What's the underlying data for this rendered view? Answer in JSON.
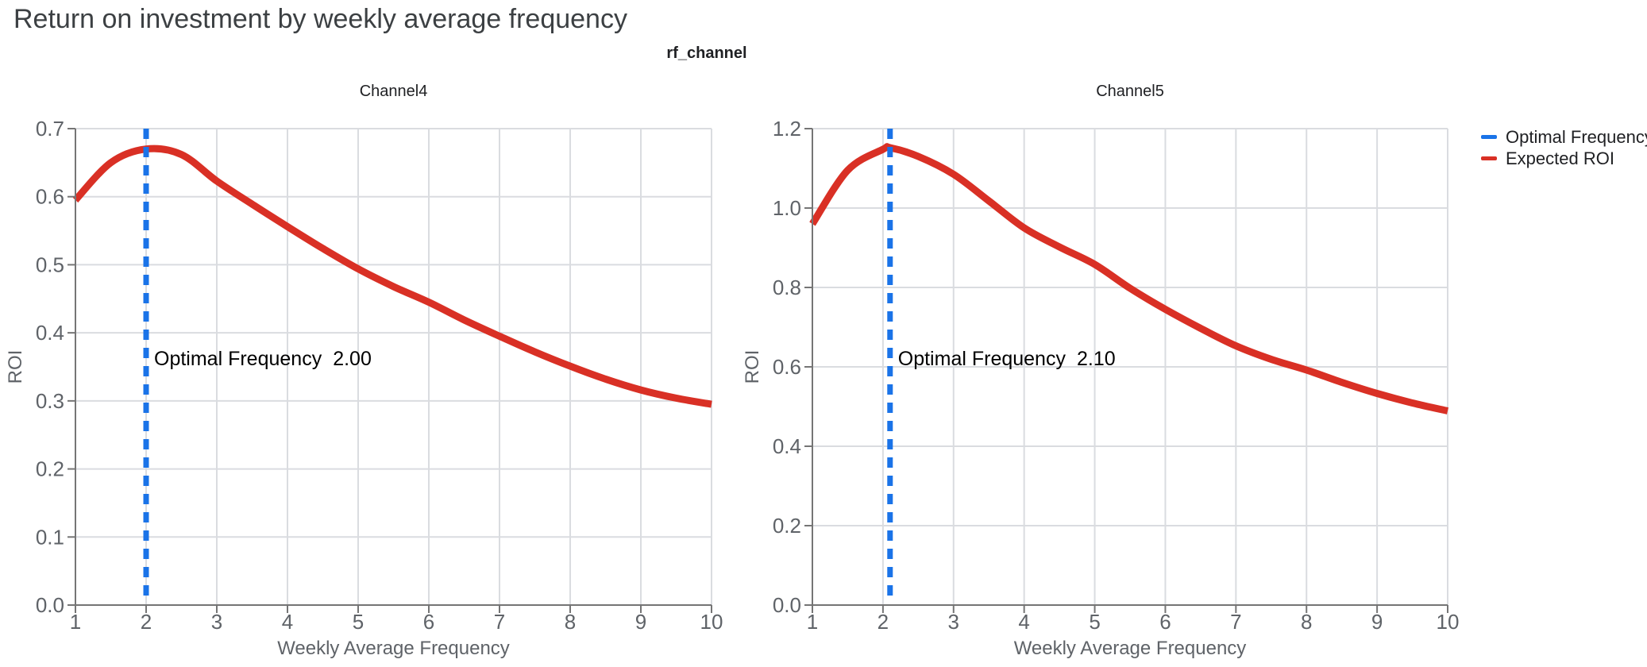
{
  "page": {
    "title": "Return on investment by weekly average frequency"
  },
  "header": {
    "facet_title": "rf_channel"
  },
  "legend": {
    "position": "top-right",
    "items": [
      {
        "label": "Optimal Frequency",
        "color": "#1A73E8",
        "style": "line"
      },
      {
        "label": "Expected ROI",
        "color": "#D93025",
        "style": "line"
      }
    ]
  },
  "colors": {
    "optimal_frequency_line": "#1A73E8",
    "expected_roi_line": "#D93025",
    "grid": "#DADCE0",
    "axis": "#757575",
    "tick_label": "#5F6368",
    "axis_title": "#5F6368",
    "chart_title": "#202124",
    "annotation": "#000000",
    "page_title": "#3C4043"
  },
  "chart_data": [
    {
      "type": "line",
      "title": "Channel4",
      "xlabel": "Weekly Average Frequency",
      "ylabel": "ROI",
      "xlim": [
        1,
        10
      ],
      "ylim": [
        0.0,
        0.7
      ],
      "xticks": [
        "1",
        "2",
        "3",
        "4",
        "5",
        "6",
        "7",
        "8",
        "9",
        "10"
      ],
      "yticks": [
        "0.0",
        "0.1",
        "0.2",
        "0.3",
        "0.4",
        "0.5",
        "0.6",
        "0.7"
      ],
      "grid": true,
      "optimal_frequency": {
        "label": "Optimal Frequency",
        "value": "2.00",
        "x": 2.0
      },
      "series": [
        {
          "name": "Expected ROI",
          "color": "#D93025",
          "x": [
            1,
            1.5,
            2,
            2.5,
            3,
            3.5,
            4,
            4.5,
            5,
            5.5,
            6,
            6.5,
            7,
            7.5,
            8,
            8.5,
            9,
            9.5,
            10
          ],
          "y": [
            0.595,
            0.65,
            0.67,
            0.662,
            0.623,
            0.589,
            0.556,
            0.524,
            0.494,
            0.468,
            0.445,
            0.419,
            0.395,
            0.372,
            0.351,
            0.332,
            0.316,
            0.304,
            0.295
          ]
        }
      ]
    },
    {
      "type": "line",
      "title": "Channel5",
      "xlabel": "Weekly Average Frequency",
      "ylabel": "ROI",
      "xlim": [
        1,
        10
      ],
      "ylim": [
        0.0,
        1.2
      ],
      "xticks": [
        "1",
        "2",
        "3",
        "4",
        "5",
        "6",
        "7",
        "8",
        "9",
        "10"
      ],
      "yticks": [
        "0.0",
        "0.2",
        "0.4",
        "0.6",
        "0.8",
        "1.0",
        "1.2"
      ],
      "grid": true,
      "optimal_frequency": {
        "label": "Optimal Frequency",
        "value": "2.10",
        "x": 2.1
      },
      "series": [
        {
          "name": "Expected ROI",
          "color": "#D93025",
          "x": [
            1,
            1.5,
            2,
            2.1,
            2.5,
            3,
            3.5,
            4,
            4.5,
            5,
            5.5,
            6,
            6.5,
            7,
            7.5,
            8,
            8.5,
            9,
            9.5,
            10
          ],
          "y": [
            0.96,
            1.095,
            1.148,
            1.152,
            1.13,
            1.085,
            1.018,
            0.95,
            0.902,
            0.858,
            0.798,
            0.745,
            0.697,
            0.653,
            0.619,
            0.592,
            0.561,
            0.533,
            0.509,
            0.489
          ]
        }
      ]
    }
  ]
}
